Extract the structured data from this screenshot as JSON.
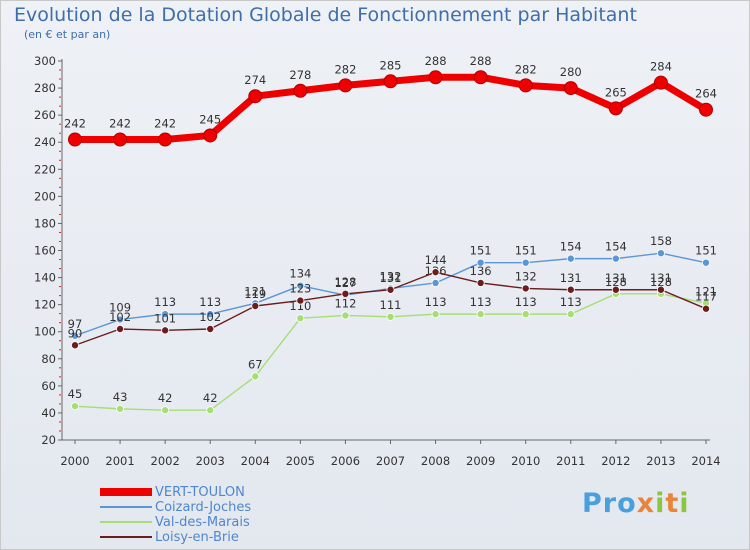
{
  "title": "Evolution de la Dotation Globale de Fonctionnement par Habitant",
  "subtitle": "(en € et par an)",
  "logo": "Proxiti",
  "chart_data": {
    "type": "line",
    "title": "Evolution de la Dotation Globale de Fonctionnement par Habitant",
    "ylabel": "(en € et par an)",
    "xlabel": "",
    "x": [
      "2000",
      "2001",
      "2002",
      "2003",
      "2004",
      "2005",
      "2006",
      "2007",
      "2008",
      "2009",
      "2010",
      "2011",
      "2012",
      "2013",
      "2014"
    ],
    "ylim": [
      20,
      300
    ],
    "yticks": [
      20,
      40,
      60,
      80,
      100,
      120,
      140,
      160,
      180,
      200,
      220,
      240,
      260,
      280,
      300
    ],
    "grid": false,
    "legend_position": "bottom-left",
    "series": [
      {
        "name": "VERT-TOULON",
        "color": "#ee0000",
        "width": 7,
        "values": [
          242,
          242,
          242,
          245,
          274,
          278,
          282,
          285,
          288,
          288,
          282,
          280,
          265,
          284,
          264
        ]
      },
      {
        "name": "Coizard-Joches",
        "color": "#5b97d5",
        "width": 1.4,
        "values": [
          97,
          109,
          113,
          113,
          121,
          134,
          127,
          132,
          136,
          151,
          151,
          154,
          154,
          158,
          151
        ]
      },
      {
        "name": "Val-des-Marais",
        "color": "#a6de74",
        "width": 1.4,
        "values": [
          45,
          43,
          42,
          42,
          67,
          110,
          112,
          111,
          113,
          113,
          113,
          113,
          128,
          128,
          121
        ]
      },
      {
        "name": "Loisy-en-Brie",
        "color": "#6b1d1d",
        "width": 1.4,
        "values": [
          90,
          102,
          101,
          102,
          119,
          123,
          128,
          131,
          144,
          136,
          132,
          131,
          131,
          131,
          117
        ]
      }
    ]
  }
}
